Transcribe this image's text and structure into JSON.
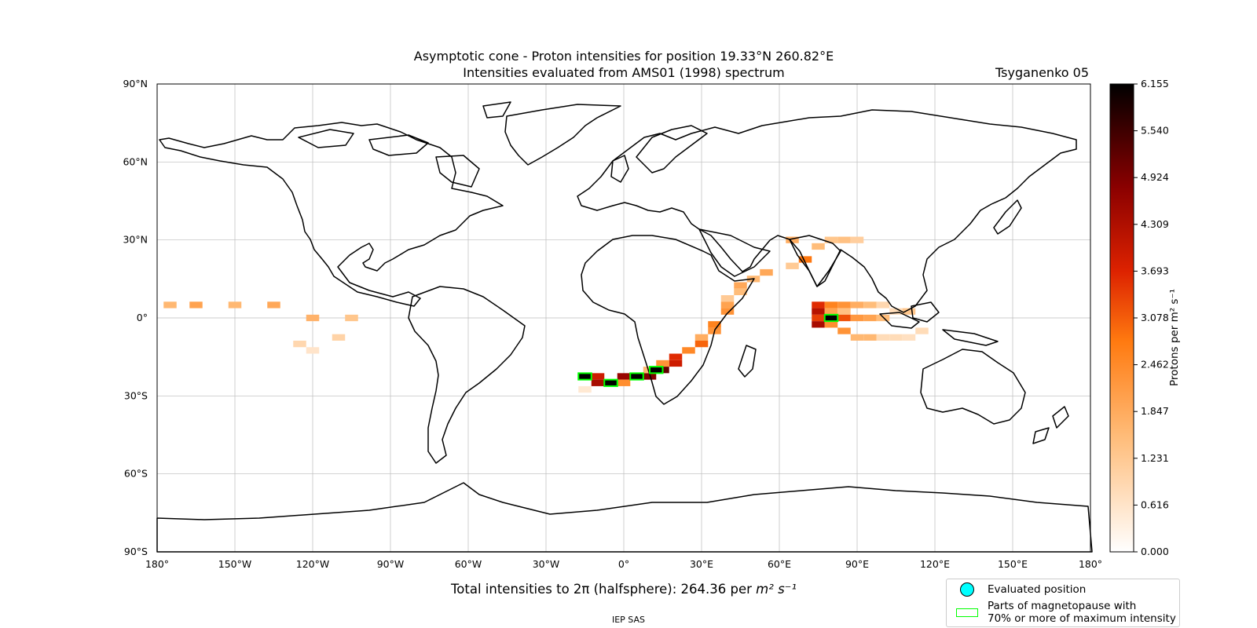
{
  "title": {
    "line1": "Asymptotic cone - Proton intensities for position 19.33°N 260.82°E",
    "line2": "Intensities evaluated from AMS01 (1998) spectrum",
    "model": "Tsyganenko 05"
  },
  "map": {
    "projection": "PlateCarree",
    "lat_ticks": [
      "90°N",
      "60°N",
      "30°N",
      "0°",
      "30°S",
      "60°S",
      "90°S"
    ],
    "lon_ticks": [
      "180°",
      "150°W",
      "120°W",
      "90°W",
      "60°W",
      "30°W",
      "0°",
      "30°E",
      "60°E",
      "90°E",
      "120°E",
      "150°E",
      "180°"
    ],
    "grid": true
  },
  "colorbar": {
    "label": "Protons per m² s⁻¹",
    "ticks": [
      "6.155",
      "5.540",
      "4.924",
      "4.309",
      "3.693",
      "3.078",
      "2.462",
      "1.847",
      "1.231",
      "0.616",
      "0.000"
    ],
    "colormap": "gist_heat_r",
    "range": [
      0.0,
      6.155
    ]
  },
  "total": {
    "prefix": "Total intensities to 2π (halfsphere): 264.36 per ",
    "unit": "m² s⁻¹"
  },
  "legend": {
    "evaluated_position": "Evaluated position",
    "magnetopause_line1": "Parts of magnetopause with",
    "magnetopause_line2": "70% or more of maximum intensity",
    "evaluated_color": "#00ffff",
    "magnetopause_color": "#00ff00"
  },
  "credit": "IEP SAS",
  "chart_data": {
    "type": "heatmap",
    "cell_size_deg": [
      5,
      2.5
    ],
    "value_unit": "Protons per m² s⁻¹",
    "cells": [
      {
        "lon": 75,
        "lat": 5,
        "v": 3.6
      },
      {
        "lon": 80,
        "lat": 5,
        "v": 2.6
      },
      {
        "lon": 85,
        "lat": 5,
        "v": 2.3
      },
      {
        "lon": 90,
        "lat": 5,
        "v": 1.8
      },
      {
        "lon": 95,
        "lat": 5,
        "v": 1.5
      },
      {
        "lon": 100,
        "lat": 5,
        "v": 0.9
      },
      {
        "lon": 75,
        "lat": 2.5,
        "v": 4.2
      },
      {
        "lon": 80,
        "lat": 2.5,
        "v": 2.0
      },
      {
        "lon": 85,
        "lat": 2.5,
        "v": 1.4
      },
      {
        "lon": 75,
        "lat": 0,
        "v": 3.4
      },
      {
        "lon": 80,
        "lat": 0,
        "v": 6.1
      },
      {
        "lon": 85,
        "lat": 0,
        "v": 3.2
      },
      {
        "lon": 90,
        "lat": 0,
        "v": 2.2
      },
      {
        "lon": 95,
        "lat": 0,
        "v": 2.0
      },
      {
        "lon": 100,
        "lat": 0,
        "v": 1.5
      },
      {
        "lon": 75,
        "lat": -2.5,
        "v": 4.4
      },
      {
        "lon": 80,
        "lat": -2.5,
        "v": 2.4
      },
      {
        "lon": 85,
        "lat": -5,
        "v": 2.3
      },
      {
        "lon": 90,
        "lat": -7.5,
        "v": 1.6
      },
      {
        "lon": 95,
        "lat": -7.5,
        "v": 1.6
      },
      {
        "lon": 100,
        "lat": -7.5,
        "v": 0.8
      },
      {
        "lon": 105,
        "lat": -7.5,
        "v": 0.8
      },
      {
        "lon": 110,
        "lat": -7.5,
        "v": 0.7
      },
      {
        "lon": 105,
        "lat": 2.5,
        "v": 0.8
      },
      {
        "lon": 110,
        "lat": 2.5,
        "v": 1.3
      },
      {
        "lon": 115,
        "lat": -5,
        "v": 0.8
      },
      {
        "lon": 70,
        "lat": 22.5,
        "v": 2.8
      },
      {
        "lon": 65,
        "lat": 20,
        "v": 1.2
      },
      {
        "lon": 75,
        "lat": 27.5,
        "v": 1.5
      },
      {
        "lon": 80,
        "lat": 30,
        "v": 1.3
      },
      {
        "lon": 85,
        "lat": 30,
        "v": 1.4
      },
      {
        "lon": 90,
        "lat": 30,
        "v": 1.1
      },
      {
        "lon": 65,
        "lat": 30,
        "v": 1.8
      },
      {
        "lon": 55,
        "lat": 17.5,
        "v": 1.9
      },
      {
        "lon": 50,
        "lat": 15,
        "v": 1.6
      },
      {
        "lon": 45,
        "lat": 12.5,
        "v": 1.9
      },
      {
        "lon": 45,
        "lat": 10,
        "v": 1.5
      },
      {
        "lon": 40,
        "lat": 7.5,
        "v": 1.2
      },
      {
        "lon": 40,
        "lat": 5,
        "v": 2.0
      },
      {
        "lon": 40,
        "lat": 2.5,
        "v": 2.3
      },
      {
        "lon": 35,
        "lat": -2.5,
        "v": 2.6
      },
      {
        "lon": 35,
        "lat": -5,
        "v": 2.3
      },
      {
        "lon": 30,
        "lat": -7.5,
        "v": 1.8
      },
      {
        "lon": 30,
        "lat": -10,
        "v": 3.0
      },
      {
        "lon": 25,
        "lat": -12.5,
        "v": 2.5
      },
      {
        "lon": 20,
        "lat": -15,
        "v": 3.6
      },
      {
        "lon": 20,
        "lat": -17.5,
        "v": 3.9
      },
      {
        "lon": 15,
        "lat": -20,
        "v": 5.2
      },
      {
        "lon": 10,
        "lat": -22.5,
        "v": 4.9
      },
      {
        "lon": 5,
        "lat": -22.5,
        "v": 5.6
      },
      {
        "lon": 0,
        "lat": -22.5,
        "v": 4.6
      },
      {
        "lon": -5,
        "lat": -25,
        "v": 5.8
      },
      {
        "lon": -10,
        "lat": -22.5,
        "v": 3.9
      },
      {
        "lon": -15,
        "lat": -22.5,
        "v": 5.9
      },
      {
        "lon": -10,
        "lat": -25,
        "v": 4.4
      },
      {
        "lon": 0,
        "lat": -25,
        "v": 2.4
      },
      {
        "lon": -15,
        "lat": -27.5,
        "v": 0.5
      },
      {
        "lon": 15,
        "lat": -17.5,
        "v": 2.3
      },
      {
        "lon": 10,
        "lat": -20,
        "v": 1.6
      },
      {
        "lon": -175,
        "lat": 5,
        "v": 1.6
      },
      {
        "lon": -165,
        "lat": 5,
        "v": 2.0
      },
      {
        "lon": -150,
        "lat": 5,
        "v": 1.6
      },
      {
        "lon": -135,
        "lat": 5,
        "v": 1.9
      },
      {
        "lon": -120,
        "lat": 0,
        "v": 1.7
      },
      {
        "lon": -105,
        "lat": 0,
        "v": 1.3
      },
      {
        "lon": -125,
        "lat": -10,
        "v": 0.9
      },
      {
        "lon": -110,
        "lat": -7.5,
        "v": 1.0
      },
      {
        "lon": -120,
        "lat": -12.5,
        "v": 0.6
      }
    ],
    "highlighted_cells": [
      {
        "lon": -15,
        "lat": -22.5
      },
      {
        "lon": -5,
        "lat": -25
      },
      {
        "lon": 5,
        "lat": -22.5
      },
      {
        "lon": 12.5,
        "lat": -20
      },
      {
        "lon": 80,
        "lat": 0
      }
    ]
  }
}
